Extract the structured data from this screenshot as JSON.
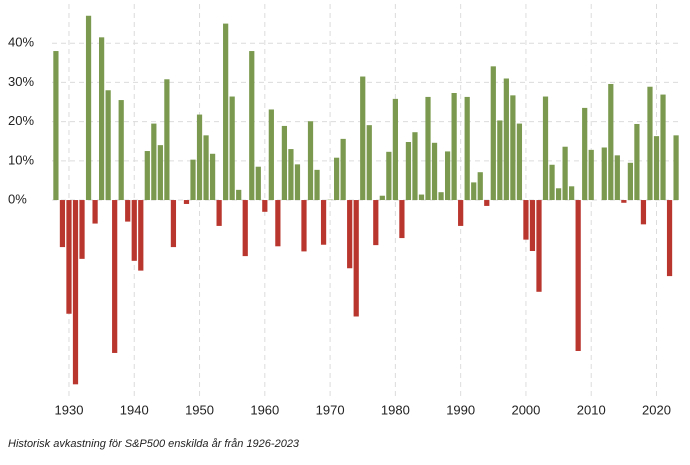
{
  "chart_data": {
    "type": "bar",
    "caption": "Historisk avkastning för S&P500 enskilda år från 1926-2023",
    "x": [
      1928,
      1929,
      1930,
      1931,
      1932,
      1933,
      1934,
      1935,
      1936,
      1937,
      1938,
      1939,
      1940,
      1941,
      1942,
      1943,
      1944,
      1945,
      1946,
      1947,
      1948,
      1949,
      1950,
      1951,
      1952,
      1953,
      1954,
      1955,
      1956,
      1957,
      1958,
      1959,
      1960,
      1961,
      1962,
      1963,
      1964,
      1965,
      1966,
      1967,
      1968,
      1969,
      1970,
      1971,
      1972,
      1973,
      1974,
      1975,
      1976,
      1977,
      1978,
      1979,
      1980,
      1981,
      1982,
      1983,
      1984,
      1985,
      1986,
      1987,
      1988,
      1989,
      1990,
      1991,
      1992,
      1993,
      1994,
      1995,
      1996,
      1997,
      1998,
      1999,
      2000,
      2001,
      2002,
      2003,
      2004,
      2005,
      2006,
      2007,
      2008,
      2009,
      2010,
      2011,
      2012,
      2013,
      2014,
      2015,
      2016,
      2017,
      2018,
      2019,
      2020,
      2021,
      2022,
      2023
    ],
    "values": [
      38,
      -12,
      -29,
      -47,
      -15,
      47,
      -6,
      41.5,
      28,
      -39,
      25.5,
      -5.5,
      -15.5,
      -18,
      12.5,
      19.5,
      14,
      30.8,
      -12,
      0,
      -1,
      10.3,
      21.8,
      16.5,
      11.8,
      -6.6,
      45,
      26.4,
      2.6,
      -14.3,
      38,
      8.5,
      -3,
      23.1,
      -11.8,
      18.9,
      13,
      9.1,
      -13.1,
      20.1,
      7.7,
      -11.4,
      0.1,
      10.8,
      15.6,
      -17.4,
      -29.7,
      31.5,
      19.1,
      -11.5,
      1.1,
      12.3,
      25.8,
      -9.7,
      14.8,
      17.3,
      1.4,
      26.3,
      14.6,
      2,
      12.4,
      27.3,
      -6.6,
      26.3,
      4.5,
      7.1,
      -1.5,
      34.1,
      20.3,
      31,
      26.7,
      19.5,
      -10.1,
      -13,
      -23.4,
      26.4,
      9,
      3,
      13.6,
      3.5,
      -38.5,
      23.5,
      12.8,
      0,
      13.4,
      29.6,
      11.4,
      -0.7,
      9.5,
      19.4,
      -6.2,
      28.9,
      16.3,
      26.9,
      -19.4,
      16.5
    ],
    "positive_color": "#7b9a4f",
    "negative_color": "#b9362e",
    "xlim": [
      1927.4,
      2023.6
    ],
    "xticks": [
      1930,
      1940,
      1950,
      1960,
      1970,
      1980,
      1990,
      2000,
      2010,
      2020
    ],
    "ylim": [
      -51,
      50
    ],
    "yticks": [
      {
        "value": 0,
        "label": "0%"
      },
      {
        "value": 10,
        "label": "10%"
      },
      {
        "value": 20,
        "label": "20%"
      },
      {
        "value": 30,
        "label": "30%"
      },
      {
        "value": 40,
        "label": "40%"
      }
    ],
    "grid": true
  }
}
